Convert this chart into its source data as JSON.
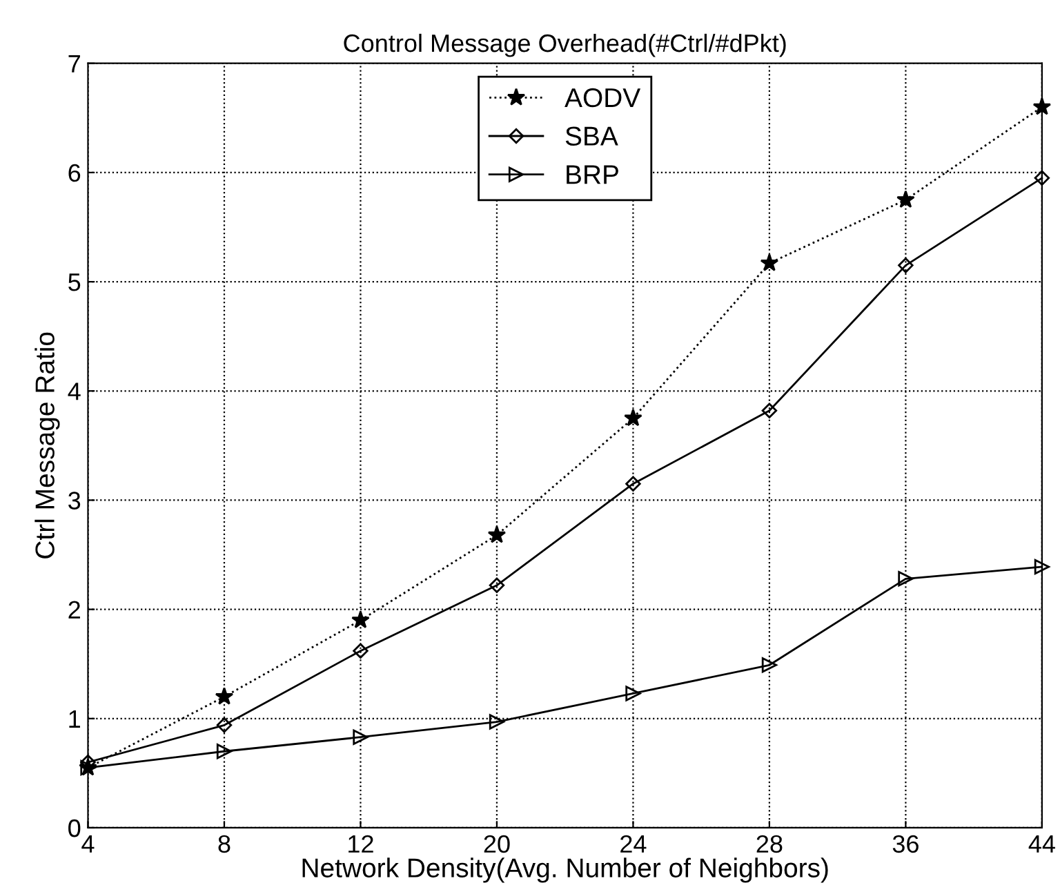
{
  "chart_data": {
    "type": "line",
    "title": "Control Message Overhead(#Ctrl/#dPkt)",
    "xlabel": "Network Density(Avg. Number of Neighbors)",
    "ylabel": "Ctrl Message Ratio",
    "categories": [
      "4",
      "8",
      "12",
      "20",
      "24",
      "28",
      "36",
      "44"
    ],
    "series": [
      {
        "name": "AODV",
        "color": "#000000",
        "marker": "star",
        "line_style": "dotted",
        "values": [
          0.55,
          1.2,
          1.9,
          2.68,
          3.75,
          5.17,
          5.75,
          6.6
        ]
      },
      {
        "name": "SBA",
        "color": "#000000",
        "marker": "diamond",
        "line_style": "solid",
        "values": [
          0.6,
          0.94,
          1.62,
          2.22,
          3.15,
          3.82,
          5.15,
          5.95
        ]
      },
      {
        "name": "BRP",
        "color": "#000000",
        "marker": "triangle",
        "line_style": "solid",
        "values": [
          0.55,
          0.7,
          0.83,
          0.97,
          1.23,
          1.49,
          2.28,
          2.39
        ]
      }
    ],
    "ylim": [
      0,
      7
    ],
    "yticks": [
      0,
      1,
      2,
      3,
      4,
      5,
      6,
      7
    ],
    "grid": true,
    "legend": "top"
  }
}
